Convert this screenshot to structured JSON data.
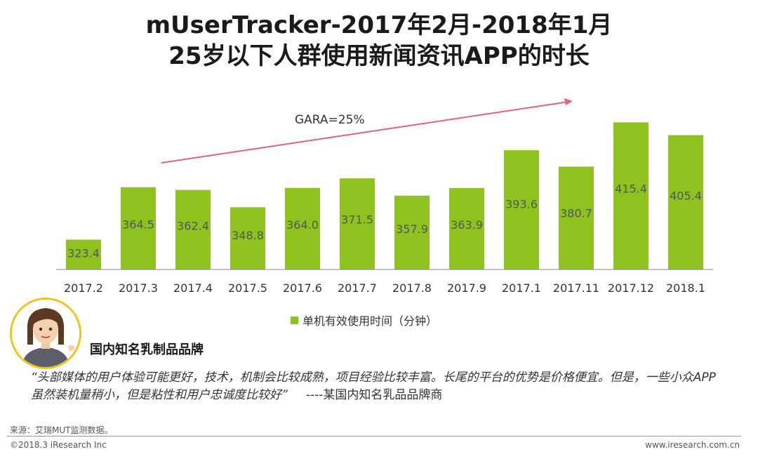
{
  "title": {
    "line1": "mUserTracker-2017年2月-2018年1月",
    "line2": "25岁以下人群使用新闻资讯APP的时长"
  },
  "chart_data": {
    "type": "bar",
    "categories": [
      "2017.2",
      "2017.3",
      "2017.4",
      "2017.5",
      "2017.6",
      "2017.7",
      "2017.8",
      "2017.9",
      "2017.1",
      "2017.11",
      "2017.12",
      "2018.1"
    ],
    "series": [
      {
        "name": "单机有效使用时间（分钟）",
        "values": [
          323.4,
          364.5,
          362.4,
          348.8,
          364.0,
          371.5,
          357.9,
          363.9,
          393.6,
          380.7,
          415.4,
          405.4
        ]
      }
    ],
    "labels": [
      "323.4",
      "364.5",
      "362.4",
      "348.8",
      "364.0",
      "371.5",
      "357.9",
      "363.9",
      "393.6",
      "380.7",
      "415.4",
      "405.4"
    ],
    "ylim": [
      300,
      420
    ],
    "annotation": "GARA=25%",
    "legend": "单机有效使用时间（分钟）",
    "legend_position": "bottom",
    "grid": false
  },
  "colors": {
    "bar": "#8dc21f",
    "arrow": "#e8607a",
    "avatar_border": "#f0c419"
  },
  "testimonial": {
    "company": "国内知名乳制品品牌",
    "quote": "“头部媒体的用户体验可能更好，技术，机制会比较成熟，项目经验比较丰富。长尾的平台的优势是价格便宜。但是，一些小众APP虽然装机量稍小，但是粘性和用户忠诚度比较好”",
    "attribution": "----某国内知名乳品品牌商"
  },
  "footer": {
    "source": "来源：艾瑞MUT监测数据。",
    "copyright": "©2018.3 iResearch Inc",
    "site": "www.iresearch.com.cn"
  }
}
